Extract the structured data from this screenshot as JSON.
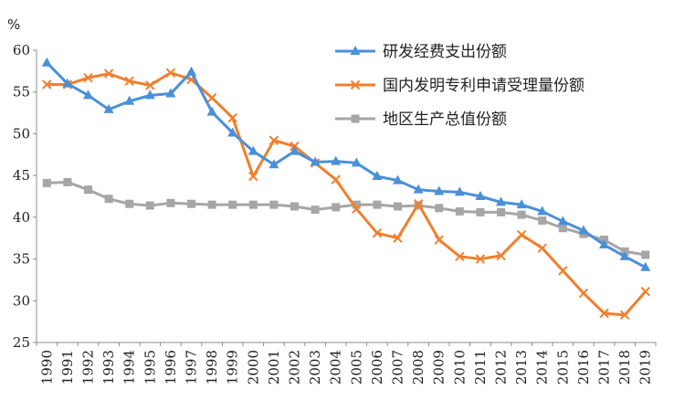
{
  "chart_data": {
    "type": "line",
    "title": "",
    "xlabel": "",
    "ylabel": "",
    "unit_label": "%",
    "ylim": [
      25,
      60
    ],
    "yticks": [
      25,
      30,
      35,
      40,
      45,
      50,
      55,
      60
    ],
    "grid": false,
    "legend_position": "top-right",
    "x": [
      "1990",
      "1991",
      "1992",
      "1993",
      "1994",
      "1995",
      "1996",
      "1997",
      "1998",
      "1999",
      "2000",
      "2001",
      "2002",
      "2003",
      "2004",
      "2005",
      "2006",
      "2007",
      "2008",
      "2009",
      "2010",
      "2011",
      "2012",
      "2013",
      "2014",
      "2015",
      "2016",
      "2017",
      "2018",
      "2019"
    ],
    "series": [
      {
        "name": "研发经费支出份额",
        "color": "#4A90D9",
        "marker": "triangle",
        "values": [
          58.5,
          56.0,
          54.6,
          52.9,
          53.9,
          54.6,
          54.8,
          57.4,
          52.6,
          50.1,
          47.9,
          46.3,
          47.9,
          46.6,
          46.7,
          46.5,
          44.9,
          44.4,
          43.3,
          43.1,
          43.0,
          42.5,
          41.8,
          41.5,
          40.7,
          39.5,
          38.4,
          36.7,
          35.3,
          34.0
        ]
      },
      {
        "name": "国内发明专利申请受理量份额",
        "color": "#F07F2D",
        "marker": "x",
        "values": [
          55.9,
          55.9,
          56.7,
          57.2,
          56.3,
          55.8,
          57.3,
          56.5,
          54.3,
          51.9,
          44.9,
          49.2,
          48.5,
          46.5,
          44.5,
          41.0,
          38.1,
          37.5,
          41.6,
          37.3,
          35.3,
          35.0,
          35.4,
          37.9,
          36.3,
          33.6,
          30.9,
          28.5,
          28.3,
          31.1
        ]
      },
      {
        "name": "地区生产总值份额",
        "color": "#A6A6A6",
        "marker": "square",
        "values": [
          44.1,
          44.2,
          43.3,
          42.2,
          41.6,
          41.4,
          41.7,
          41.6,
          41.5,
          41.5,
          41.5,
          41.5,
          41.3,
          40.9,
          41.2,
          41.5,
          41.5,
          41.3,
          41.4,
          41.1,
          40.7,
          40.6,
          40.6,
          40.3,
          39.6,
          38.7,
          38.0,
          37.3,
          35.9,
          35.5
        ]
      }
    ]
  }
}
